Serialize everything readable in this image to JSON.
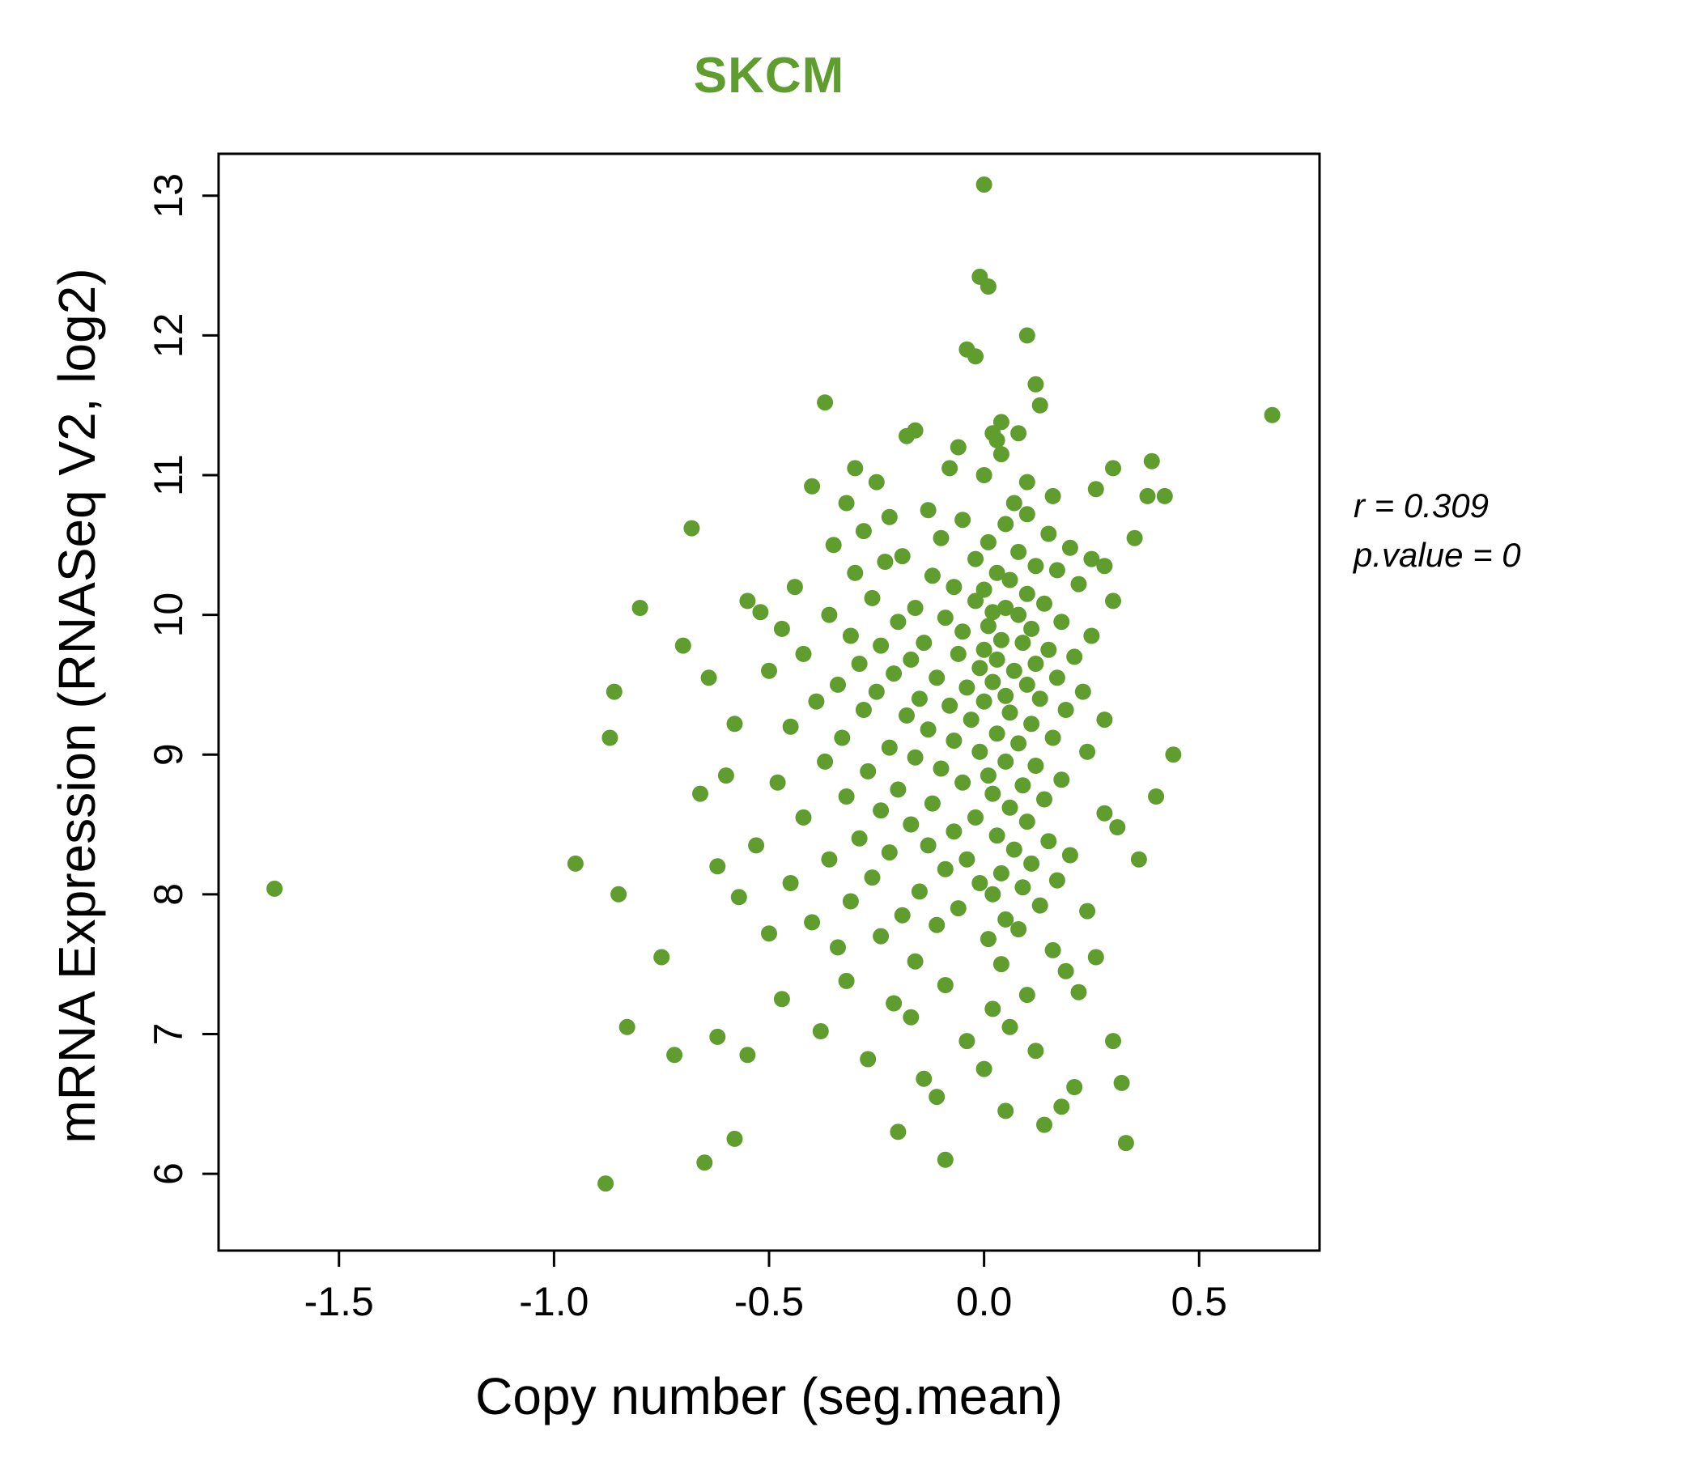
{
  "chart_data": {
    "type": "scatter",
    "title": "SKCM",
    "xlabel": "Copy number (seg.mean)",
    "ylabel": "mRNA Expression (RNASeq V2, log2)",
    "annotation": {
      "line1": "r = 0.309",
      "line2": "p.value = 0"
    },
    "xlim": [
      -1.78,
      0.78
    ],
    "ylim": [
      5.45,
      13.3
    ],
    "x_ticks": [
      -1.5,
      -1.0,
      -0.5,
      0.0,
      0.5
    ],
    "x_tick_labels": [
      "-1.5",
      "-1.0",
      "-0.5",
      "0.0",
      "0.5"
    ],
    "y_ticks": [
      6,
      7,
      8,
      9,
      10,
      11,
      12,
      13
    ],
    "y_tick_labels": [
      "6",
      "7",
      "8",
      "9",
      "10",
      "11",
      "12",
      "13"
    ],
    "point_color": "#5f9e2e",
    "title_color": "#5f9e2e",
    "axis_color": "#000000",
    "legend": "none",
    "grid": false,
    "points": [
      [
        0.0,
        13.08
      ],
      [
        -0.01,
        12.42
      ],
      [
        0.01,
        12.35
      ],
      [
        0.1,
        12.0
      ],
      [
        -0.04,
        11.9
      ],
      [
        -0.02,
        11.85
      ],
      [
        0.12,
        11.65
      ],
      [
        -0.37,
        11.52
      ],
      [
        0.67,
        11.43
      ],
      [
        0.13,
        11.5
      ],
      [
        -0.16,
        11.32
      ],
      [
        -0.18,
        11.28
      ],
      [
        0.02,
        11.3
      ],
      [
        0.04,
        11.38
      ],
      [
        0.08,
        11.3
      ],
      [
        0.03,
        11.25
      ],
      [
        -0.06,
        11.2
      ],
      [
        0.04,
        11.15
      ],
      [
        0.3,
        11.05
      ],
      [
        0.39,
        11.1
      ],
      [
        -0.3,
        11.05
      ],
      [
        -0.08,
        11.05
      ],
      [
        0.0,
        11.0
      ],
      [
        -0.25,
        10.95
      ],
      [
        -0.4,
        10.92
      ],
      [
        0.26,
        10.9
      ],
      [
        0.38,
        10.85
      ],
      [
        0.42,
        10.85
      ],
      [
        -0.32,
        10.8
      ],
      [
        0.07,
        10.8
      ],
      [
        -0.13,
        10.75
      ],
      [
        0.1,
        10.95
      ],
      [
        0.16,
        10.85
      ],
      [
        0.1,
        10.72
      ],
      [
        -0.22,
        10.7
      ],
      [
        -0.05,
        10.68
      ],
      [
        0.05,
        10.65
      ],
      [
        -0.68,
        10.62
      ],
      [
        -0.28,
        10.6
      ],
      [
        0.15,
        10.58
      ],
      [
        -0.1,
        10.55
      ],
      [
        0.35,
        10.55
      ],
      [
        0.01,
        10.52
      ],
      [
        -0.35,
        10.5
      ],
      [
        0.2,
        10.48
      ],
      [
        0.08,
        10.45
      ],
      [
        -0.19,
        10.42
      ],
      [
        0.25,
        10.4
      ],
      [
        -0.02,
        10.4
      ],
      [
        -0.23,
        10.38
      ],
      [
        0.12,
        10.35
      ],
      [
        0.28,
        10.35
      ],
      [
        0.17,
        10.32
      ],
      [
        -0.3,
        10.3
      ],
      [
        0.03,
        10.3
      ],
      [
        -0.12,
        10.28
      ],
      [
        0.06,
        10.25
      ],
      [
        0.22,
        10.22
      ],
      [
        -0.44,
        10.2
      ],
      [
        -0.07,
        10.2
      ],
      [
        0.0,
        10.18
      ],
      [
        0.1,
        10.15
      ],
      [
        -0.26,
        10.12
      ],
      [
        0.3,
        10.1
      ],
      [
        -0.02,
        10.1
      ],
      [
        0.14,
        10.08
      ],
      [
        -0.16,
        10.05
      ],
      [
        0.05,
        10.05
      ],
      [
        -0.55,
        10.1
      ],
      [
        -0.52,
        10.02
      ],
      [
        0.02,
        10.02
      ],
      [
        -0.8,
        10.05
      ],
      [
        -0.36,
        10.0
      ],
      [
        0.08,
        10.0
      ],
      [
        -0.09,
        9.98
      ],
      [
        0.18,
        9.95
      ],
      [
        -0.2,
        9.95
      ],
      [
        0.01,
        9.92
      ],
      [
        -0.47,
        9.9
      ],
      [
        0.11,
        9.9
      ],
      [
        -0.05,
        9.88
      ],
      [
        0.25,
        9.85
      ],
      [
        -0.31,
        9.85
      ],
      [
        0.04,
        9.82
      ],
      [
        -0.14,
        9.8
      ],
      [
        0.09,
        9.8
      ],
      [
        -0.7,
        9.78
      ],
      [
        -0.24,
        9.78
      ],
      [
        0.0,
        9.75
      ],
      [
        0.15,
        9.75
      ],
      [
        -0.42,
        9.72
      ],
      [
        -0.06,
        9.72
      ],
      [
        0.21,
        9.7
      ],
      [
        -0.17,
        9.68
      ],
      [
        0.03,
        9.68
      ],
      [
        -0.29,
        9.65
      ],
      [
        0.12,
        9.65
      ],
      [
        -0.01,
        9.62
      ],
      [
        -0.5,
        9.6
      ],
      [
        0.07,
        9.6
      ],
      [
        -0.21,
        9.58
      ],
      [
        0.17,
        9.55
      ],
      [
        -0.11,
        9.55
      ],
      [
        0.02,
        9.52
      ],
      [
        -0.64,
        9.55
      ],
      [
        -0.34,
        9.5
      ],
      [
        0.1,
        9.5
      ],
      [
        -0.04,
        9.48
      ],
      [
        0.23,
        9.45
      ],
      [
        -0.25,
        9.45
      ],
      [
        0.05,
        9.42
      ],
      [
        -0.15,
        9.4
      ],
      [
        0.13,
        9.4
      ],
      [
        -0.86,
        9.45
      ],
      [
        -0.39,
        9.38
      ],
      [
        0.0,
        9.38
      ],
      [
        -0.08,
        9.35
      ],
      [
        0.19,
        9.32
      ],
      [
        -0.28,
        9.32
      ],
      [
        0.06,
        9.3
      ],
      [
        -0.18,
        9.28
      ],
      [
        0.28,
        9.25
      ],
      [
        -0.03,
        9.25
      ],
      [
        -0.58,
        9.22
      ],
      [
        0.11,
        9.22
      ],
      [
        -0.45,
        9.2
      ],
      [
        -0.13,
        9.18
      ],
      [
        0.03,
        9.15
      ],
      [
        0.16,
        9.12
      ],
      [
        -0.33,
        9.12
      ],
      [
        -0.87,
        9.12
      ],
      [
        -0.07,
        9.1
      ],
      [
        0.08,
        9.08
      ],
      [
        -0.22,
        9.05
      ],
      [
        0.24,
        9.02
      ],
      [
        -0.01,
        9.02
      ],
      [
        0.44,
        9.0
      ],
      [
        -0.16,
        8.98
      ],
      [
        0.05,
        8.95
      ],
      [
        -0.37,
        8.95
      ],
      [
        0.12,
        8.92
      ],
      [
        -0.1,
        8.9
      ],
      [
        -0.27,
        8.88
      ],
      [
        0.01,
        8.85
      ],
      [
        -0.6,
        8.85
      ],
      [
        0.18,
        8.82
      ],
      [
        -0.05,
        8.8
      ],
      [
        -0.48,
        8.8
      ],
      [
        0.09,
        8.78
      ],
      [
        -0.2,
        8.75
      ],
      [
        0.02,
        8.72
      ],
      [
        -0.66,
        8.72
      ],
      [
        -0.32,
        8.7
      ],
      [
        0.4,
        8.7
      ],
      [
        0.14,
        8.68
      ],
      [
        -0.12,
        8.65
      ],
      [
        0.06,
        8.62
      ],
      [
        -0.24,
        8.6
      ],
      [
        0.28,
        8.58
      ],
      [
        -0.02,
        8.55
      ],
      [
        -0.42,
        8.55
      ],
      [
        0.1,
        8.52
      ],
      [
        -0.17,
        8.5
      ],
      [
        0.31,
        8.48
      ],
      [
        -0.07,
        8.45
      ],
      [
        0.03,
        8.42
      ],
      [
        -0.29,
        8.4
      ],
      [
        0.15,
        8.38
      ],
      [
        -0.53,
        8.35
      ],
      [
        -0.13,
        8.35
      ],
      [
        0.07,
        8.32
      ],
      [
        -0.22,
        8.3
      ],
      [
        0.2,
        8.28
      ],
      [
        -0.04,
        8.25
      ],
      [
        -0.36,
        8.25
      ],
      [
        0.36,
        8.25
      ],
      [
        0.11,
        8.22
      ],
      [
        -0.95,
        8.22
      ],
      [
        -0.62,
        8.2
      ],
      [
        -0.09,
        8.18
      ],
      [
        0.04,
        8.15
      ],
      [
        -0.26,
        8.12
      ],
      [
        0.17,
        8.1
      ],
      [
        -0.01,
        8.08
      ],
      [
        -0.45,
        8.08
      ],
      [
        0.09,
        8.05
      ],
      [
        -1.65,
        8.04
      ],
      [
        -0.15,
        8.02
      ],
      [
        -0.85,
        8.0
      ],
      [
        0.02,
        8.0
      ],
      [
        -0.57,
        7.98
      ],
      [
        -0.31,
        7.95
      ],
      [
        0.13,
        7.92
      ],
      [
        -0.06,
        7.9
      ],
      [
        0.24,
        7.88
      ],
      [
        -0.19,
        7.85
      ],
      [
        0.05,
        7.82
      ],
      [
        -0.4,
        7.8
      ],
      [
        -0.11,
        7.78
      ],
      [
        0.08,
        7.75
      ],
      [
        -0.5,
        7.72
      ],
      [
        -0.24,
        7.7
      ],
      [
        0.01,
        7.68
      ],
      [
        -0.34,
        7.62
      ],
      [
        0.16,
        7.6
      ],
      [
        -0.75,
        7.55
      ],
      [
        -0.16,
        7.52
      ],
      [
        0.04,
        7.5
      ],
      [
        0.19,
        7.45
      ],
      [
        0.26,
        7.55
      ],
      [
        -0.32,
        7.38
      ],
      [
        -0.09,
        7.35
      ],
      [
        0.1,
        7.28
      ],
      [
        0.22,
        7.3
      ],
      [
        -0.47,
        7.25
      ],
      [
        -0.21,
        7.22
      ],
      [
        0.02,
        7.18
      ],
      [
        -0.17,
        7.12
      ],
      [
        0.06,
        7.05
      ],
      [
        -0.83,
        7.05
      ],
      [
        -0.38,
        7.02
      ],
      [
        -0.62,
        6.98
      ],
      [
        -0.04,
        6.95
      ],
      [
        0.3,
        6.95
      ],
      [
        0.12,
        6.88
      ],
      [
        -0.72,
        6.85
      ],
      [
        -0.27,
        6.82
      ],
      [
        -0.55,
        6.85
      ],
      [
        0.0,
        6.75
      ],
      [
        -0.14,
        6.68
      ],
      [
        0.21,
        6.62
      ],
      [
        -0.11,
        6.55
      ],
      [
        0.32,
        6.65
      ],
      [
        0.05,
        6.45
      ],
      [
        0.18,
        6.48
      ],
      [
        -0.2,
        6.3
      ],
      [
        0.14,
        6.35
      ],
      [
        -0.58,
        6.25
      ],
      [
        0.33,
        6.22
      ],
      [
        -0.09,
        6.1
      ],
      [
        -0.65,
        6.08
      ],
      [
        -0.88,
        5.93
      ]
    ]
  }
}
